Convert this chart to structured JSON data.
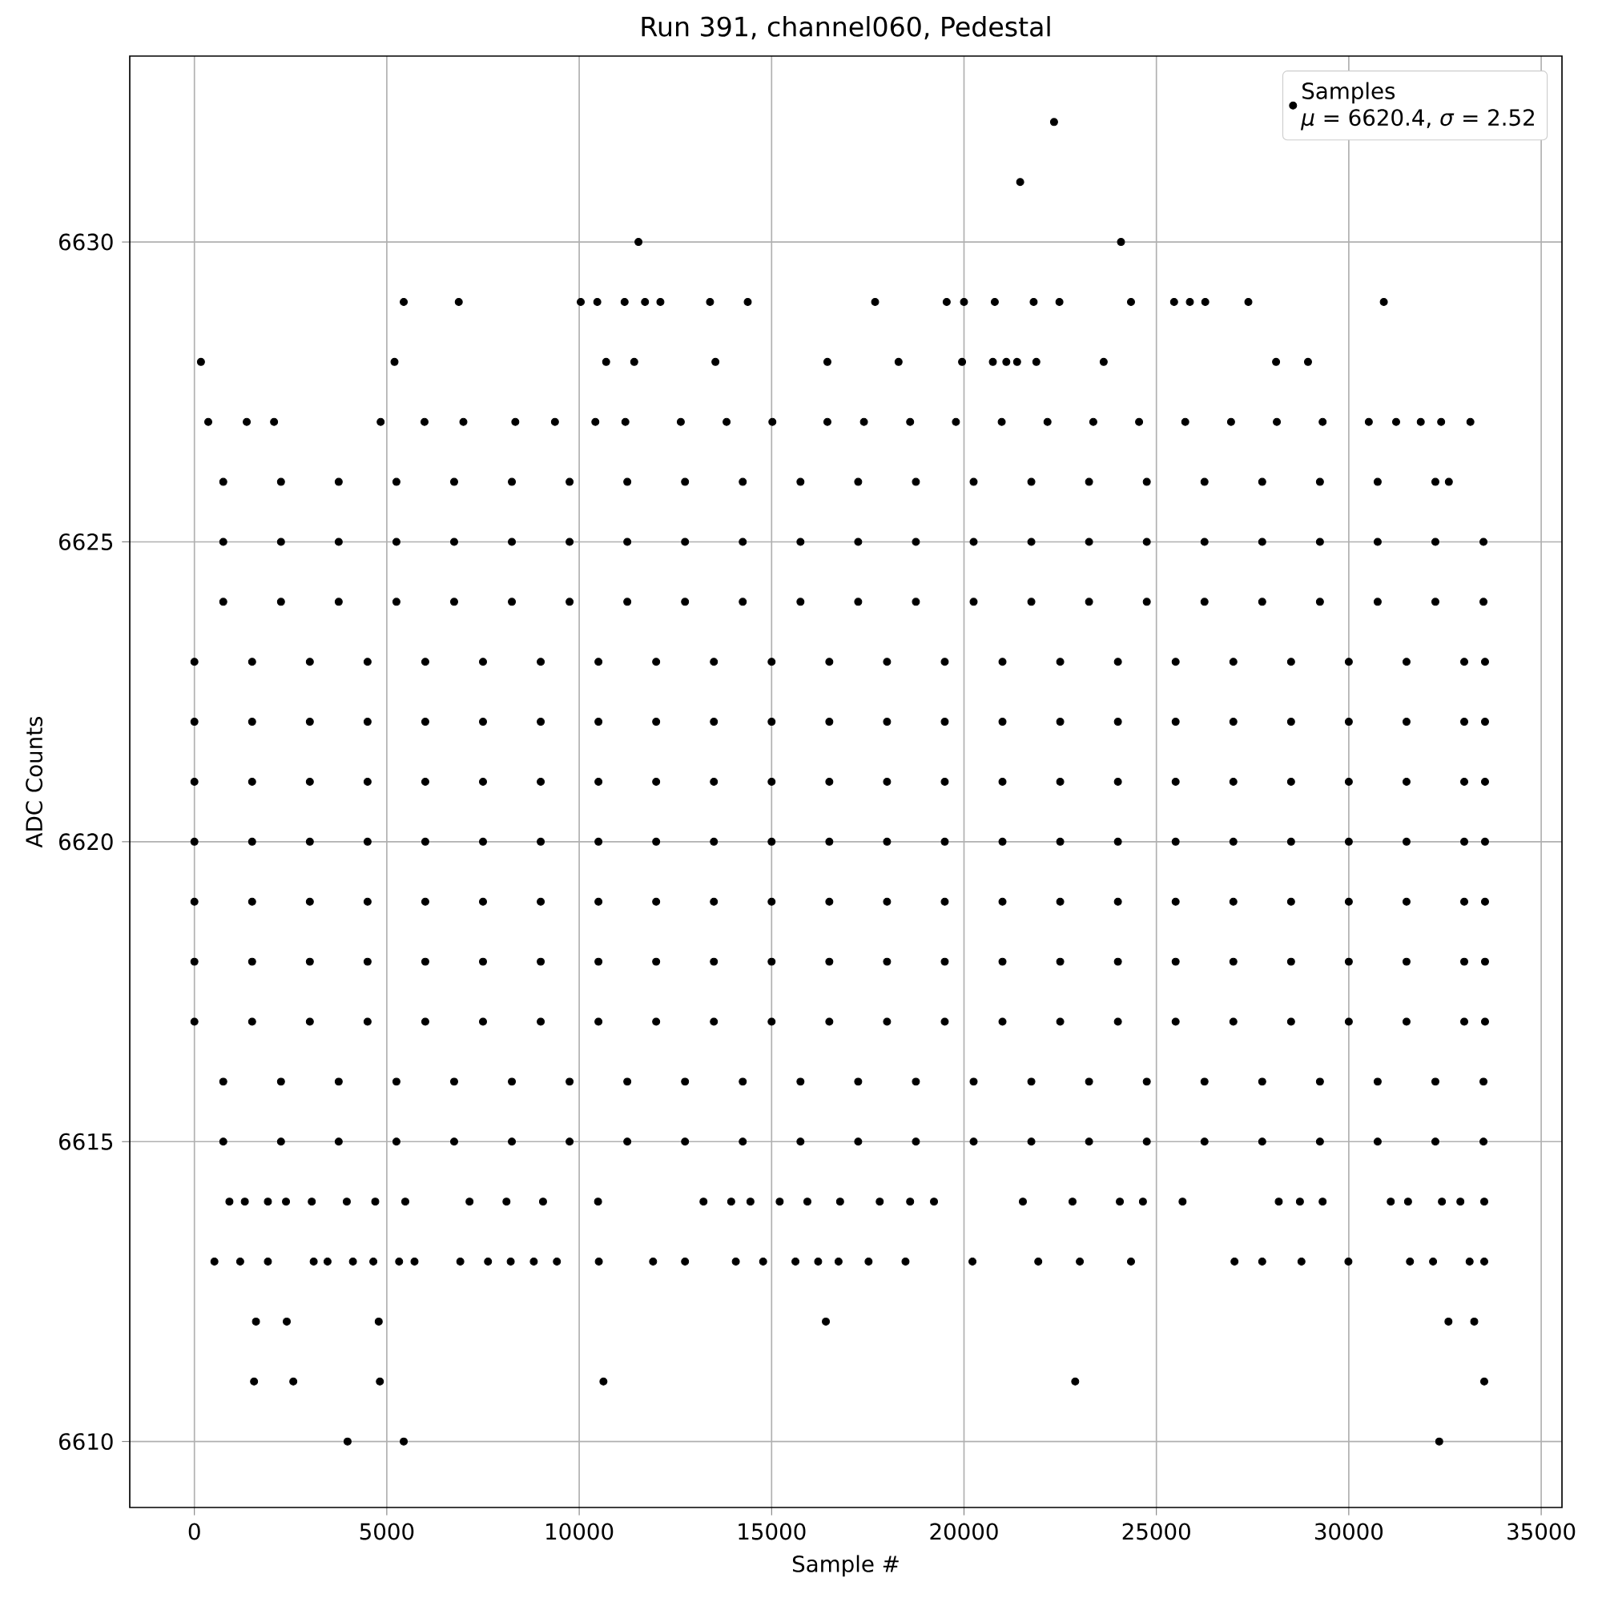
{
  "chart_data": {
    "type": "scatter",
    "title": "Run 391, channel060, Pedestal",
    "xlabel": "Sample #",
    "ylabel": "ADC Counts",
    "annotations": [
      "*μ* = 6620.4, *σ* = 2.52"
    ],
    "xlim": [
      -1680,
      35540
    ],
    "ylim": [
      6608.9,
      6633.1
    ],
    "xticks": [
      0,
      5000,
      10000,
      15000,
      20000,
      25000,
      30000,
      35000
    ],
    "yticks": [
      6610,
      6615,
      6620,
      6625,
      6630
    ],
    "grid": true,
    "legend": "top right",
    "marker": "circle",
    "series": [
      {
        "name": "Samples",
        "color": "#000000",
        "x": [
          0,
          1500,
          3000,
          4500,
          6000,
          7500,
          9000,
          10500,
          12000,
          13500,
          15000,
          16500,
          18000,
          19500,
          21000,
          22500,
          24000,
          25500,
          27000,
          28500,
          30000,
          31500,
          33000,
          33540,
          0,
          1500,
          3000,
          4500,
          6000,
          7500,
          9000,
          10500,
          12000,
          13500,
          15000,
          16500,
          18000,
          19500,
          21000,
          22500,
          24000,
          25500,
          27000,
          28500,
          30000,
          31500,
          33000,
          33540,
          0,
          1500,
          3000,
          4500,
          6000,
          7500,
          9000,
          10500,
          12000,
          13500,
          15000,
          16500,
          18000,
          19500,
          21000,
          22500,
          24000,
          25500,
          27000,
          28500,
          30000,
          31500,
          33000,
          33540,
          0,
          1500,
          3000,
          4500,
          6000,
          7500,
          9000,
          10500,
          12000,
          13500,
          15000,
          16500,
          18000,
          19500,
          21000,
          22500,
          24000,
          25500,
          27000,
          28500,
          30000,
          31500,
          33000,
          33540,
          0,
          1500,
          3000,
          4500,
          6000,
          7500,
          9000,
          10500,
          12000,
          13500,
          15000,
          16500,
          18000,
          19500,
          21000,
          22500,
          24000,
          25500,
          27000,
          28500,
          30000,
          31500,
          33000,
          33540,
          0,
          1500,
          3000,
          4500,
          6000,
          7500,
          9000,
          10500,
          12000,
          13500,
          15000,
          16500,
          18000,
          19500,
          21000,
          22500,
          24000,
          25500,
          27000,
          28500,
          30000,
          31500,
          33000,
          33540,
          0,
          1500,
          3000,
          4500,
          6000,
          7500,
          9000,
          10500,
          12000,
          13500,
          15000,
          16500,
          18000,
          19500,
          21000,
          22500,
          24000,
          25500,
          27000,
          28500,
          30000,
          31500,
          33000,
          33540,
          750,
          2250,
          3750,
          5250,
          6750,
          8250,
          9750,
          11250,
          12750,
          14250,
          15750,
          17250,
          18750,
          20250,
          21750,
          23250,
          24750,
          26250,
          27750,
          29250,
          30750,
          32250,
          33500,
          750,
          2250,
          3750,
          5250,
          6750,
          8250,
          9750,
          11250,
          12750,
          14250,
          15750,
          17250,
          18750,
          20250,
          21750,
          23250,
          24750,
          26250,
          27750,
          29250,
          30750,
          32250,
          33500,
          750,
          2250,
          3750,
          5250,
          6750,
          8250,
          9750,
          11250,
          12750,
          14250,
          15750,
          17250,
          18750,
          20250,
          21750,
          23250,
          24750,
          26250,
          27750,
          29250,
          30750,
          32250,
          33500,
          750,
          2250,
          3750,
          5250,
          6750,
          8250,
          9750,
          11250,
          12750,
          14250,
          15750,
          17250,
          18750,
          20250,
          21750,
          23250,
          24750,
          26250,
          27750,
          29250,
          30750,
          32250,
          33500,
          750,
          2250,
          3750,
          5250,
          6750,
          8250,
          9750,
          11250,
          12750,
          14250,
          15750,
          17250,
          18750,
          20250,
          21750,
          23250,
          24750,
          26250,
          27750,
          29250,
          30750,
          32250,
          32600,
          360,
          1360,
          2070,
          4840,
          5980,
          6990,
          8340,
          9370,
          10420,
          11200,
          12640,
          13830,
          15020,
          16450,
          17400,
          18600,
          19790,
          20980,
          22170,
          23360,
          24550,
          25750,
          26940,
          28130,
          29320,
          30520,
          31230,
          31870,
          32400,
          33160,
          170,
          5200,
          10700,
          11430,
          13540,
          16450,
          18300,
          19950,
          20750,
          21100,
          21380,
          21880,
          23630,
          28110,
          28940,
          5440,
          6870,
          10040,
          10470,
          11180,
          11710,
          12110,
          13400,
          14380,
          17690,
          19550,
          20000,
          20800,
          21810,
          22480,
          24340,
          25460,
          25870,
          26270,
          27390,
          30910,
          11540,
          24080,
          21460,
          22340,
          910,
          1310,
          1910,
          2380,
          3050,
          3960,
          4700,
          5480,
          7150,
          8110,
          9060,
          10490,
          13230,
          13950,
          14450,
          15210,
          15930,
          16780,
          17810,
          18600,
          19220,
          21530,
          22820,
          24050,
          24650,
          25680,
          28180,
          28730,
          29320,
          31090,
          31540,
          32420,
          32900,
          33520,
          520,
          1190,
          1910,
          3100,
          3460,
          4120,
          4650,
          5320,
          5720,
          6910,
          7630,
          8220,
          8820,
          9420,
          10510,
          11920,
          12750,
          14070,
          14780,
          15620,
          16210,
          16740,
          17520,
          18480,
          20220,
          21930,
          23010,
          24340,
          27030,
          27750,
          28770,
          29990,
          31590,
          32190,
          33140,
          33520,
          1600,
          2400,
          4790,
          16410,
          32590,
          33260,
          1550,
          2570,
          4820,
          10630,
          22890,
          33520,
          3980,
          5440,
          32350
        ],
        "values": [
          6617,
          6617,
          6617,
          6617,
          6617,
          6617,
          6617,
          6617,
          6617,
          6617,
          6617,
          6617,
          6617,
          6617,
          6617,
          6617,
          6617,
          6617,
          6617,
          6617,
          6617,
          6617,
          6617,
          6617,
          6618,
          6618,
          6618,
          6618,
          6618,
          6618,
          6618,
          6618,
          6618,
          6618,
          6618,
          6618,
          6618,
          6618,
          6618,
          6618,
          6618,
          6618,
          6618,
          6618,
          6618,
          6618,
          6618,
          6618,
          6619,
          6619,
          6619,
          6619,
          6619,
          6619,
          6619,
          6619,
          6619,
          6619,
          6619,
          6619,
          6619,
          6619,
          6619,
          6619,
          6619,
          6619,
          6619,
          6619,
          6619,
          6619,
          6619,
          6619,
          6620,
          6620,
          6620,
          6620,
          6620,
          6620,
          6620,
          6620,
          6620,
          6620,
          6620,
          6620,
          6620,
          6620,
          6620,
          6620,
          6620,
          6620,
          6620,
          6620,
          6620,
          6620,
          6620,
          6620,
          6621,
          6621,
          6621,
          6621,
          6621,
          6621,
          6621,
          6621,
          6621,
          6621,
          6621,
          6621,
          6621,
          6621,
          6621,
          6621,
          6621,
          6621,
          6621,
          6621,
          6621,
          6621,
          6621,
          6621,
          6622,
          6622,
          6622,
          6622,
          6622,
          6622,
          6622,
          6622,
          6622,
          6622,
          6622,
          6622,
          6622,
          6622,
          6622,
          6622,
          6622,
          6622,
          6622,
          6622,
          6622,
          6622,
          6622,
          6622,
          6623,
          6623,
          6623,
          6623,
          6623,
          6623,
          6623,
          6623,
          6623,
          6623,
          6623,
          6623,
          6623,
          6623,
          6623,
          6623,
          6623,
          6623,
          6623,
          6623,
          6623,
          6623,
          6623,
          6623,
          6615,
          6615,
          6615,
          6615,
          6615,
          6615,
          6615,
          6615,
          6615,
          6615,
          6615,
          6615,
          6615,
          6615,
          6615,
          6615,
          6615,
          6615,
          6615,
          6615,
          6615,
          6615,
          6615,
          6616,
          6616,
          6616,
          6616,
          6616,
          6616,
          6616,
          6616,
          6616,
          6616,
          6616,
          6616,
          6616,
          6616,
          6616,
          6616,
          6616,
          6616,
          6616,
          6616,
          6616,
          6616,
          6616,
          6624,
          6624,
          6624,
          6624,
          6624,
          6624,
          6624,
          6624,
          6624,
          6624,
          6624,
          6624,
          6624,
          6624,
          6624,
          6624,
          6624,
          6624,
          6624,
          6624,
          6624,
          6624,
          6624,
          6625,
          6625,
          6625,
          6625,
          6625,
          6625,
          6625,
          6625,
          6625,
          6625,
          6625,
          6625,
          6625,
          6625,
          6625,
          6625,
          6625,
          6625,
          6625,
          6625,
          6625,
          6625,
          6625,
          6626,
          6626,
          6626,
          6626,
          6626,
          6626,
          6626,
          6626,
          6626,
          6626,
          6626,
          6626,
          6626,
          6626,
          6626,
          6626,
          6626,
          6626,
          6626,
          6626,
          6626,
          6626,
          6626,
          6627,
          6627,
          6627,
          6627,
          6627,
          6627,
          6627,
          6627,
          6627,
          6627,
          6627,
          6627,
          6627,
          6627,
          6627,
          6627,
          6627,
          6627,
          6627,
          6627,
          6627,
          6627,
          6627,
          6627,
          6627,
          6627,
          6627,
          6627,
          6627,
          6627,
          6628,
          6628,
          6628,
          6628,
          6628,
          6628,
          6628,
          6628,
          6628,
          6628,
          6628,
          6628,
          6628,
          6628,
          6628,
          6629,
          6629,
          6629,
          6629,
          6629,
          6629,
          6629,
          6629,
          6629,
          6629,
          6629,
          6629,
          6629,
          6629,
          6629,
          6629,
          6629,
          6629,
          6629,
          6629,
          6629,
          6630,
          6630,
          6631,
          6632,
          6614,
          6614,
          6614,
          6614,
          6614,
          6614,
          6614,
          6614,
          6614,
          6614,
          6614,
          6614,
          6614,
          6614,
          6614,
          6614,
          6614,
          6614,
          6614,
          6614,
          6614,
          6614,
          6614,
          6614,
          6614,
          6614,
          6614,
          6614,
          6614,
          6614,
          6614,
          6614,
          6614,
          6614,
          6613,
          6613,
          6613,
          6613,
          6613,
          6613,
          6613,
          6613,
          6613,
          6613,
          6613,
          6613,
          6613,
          6613,
          6613,
          6613,
          6613,
          6613,
          6613,
          6613,
          6613,
          6613,
          6613,
          6613,
          6613,
          6613,
          6613,
          6613,
          6613,
          6613,
          6613,
          6613,
          6613,
          6613,
          6613,
          6613,
          6612,
          6612,
          6612,
          6612,
          6612,
          6612,
          6611,
          6611,
          6611,
          6611,
          6611,
          6611,
          6610,
          6610,
          6610
        ]
      }
    ]
  }
}
